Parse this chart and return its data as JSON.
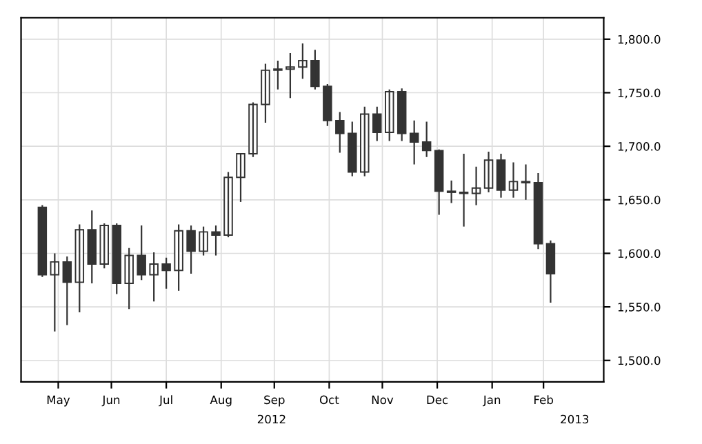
{
  "chart_data": {
    "type": "candlestick",
    "x": [
      "2012-05-07",
      "2012-05-14",
      "2012-05-21",
      "2012-05-28",
      "2012-06-04",
      "2012-06-11",
      "2012-06-18",
      "2012-06-25",
      "2012-07-02",
      "2012-07-09",
      "2012-07-16",
      "2012-07-23",
      "2012-07-30",
      "2012-08-06",
      "2012-08-13",
      "2012-08-20",
      "2012-08-27",
      "2012-09-03",
      "2012-09-10",
      "2012-09-17",
      "2012-09-24",
      "2012-10-01",
      "2012-10-08",
      "2012-10-15",
      "2012-10-22",
      "2012-10-29",
      "2012-11-05",
      "2012-11-12",
      "2012-11-19",
      "2012-11-26",
      "2012-12-03",
      "2012-12-10",
      "2012-12-17",
      "2012-12-24",
      "2012-12-31",
      "2013-01-07",
      "2013-01-14",
      "2013-01-21",
      "2013-01-28",
      "2013-02-04",
      "2013-02-11",
      "2013-02-18"
    ],
    "ohlc": [
      [
        1643,
        1645,
        1578,
        1580
      ],
      [
        1580,
        1600,
        1527,
        1592
      ],
      [
        1592,
        1597,
        1533,
        1573
      ],
      [
        1573,
        1627,
        1545,
        1622
      ],
      [
        1622,
        1640,
        1572,
        1590
      ],
      [
        1590,
        1628,
        1586,
        1626
      ],
      [
        1626,
        1628,
        1562,
        1572
      ],
      [
        1572,
        1605,
        1548,
        1598
      ],
      [
        1598,
        1626,
        1575,
        1580
      ],
      [
        1580,
        1601,
        1555,
        1590
      ],
      [
        1590,
        1596,
        1567,
        1584
      ],
      [
        1584,
        1627,
        1565,
        1621
      ],
      [
        1621,
        1626,
        1581,
        1602
      ],
      [
        1602,
        1625,
        1598,
        1620
      ],
      [
        1620,
        1626,
        1598,
        1617
      ],
      [
        1617,
        1676,
        1615,
        1671
      ],
      [
        1671,
        1693,
        1648,
        1693
      ],
      [
        1693,
        1741,
        1690,
        1739
      ],
      [
        1739,
        1777,
        1722,
        1771
      ],
      [
        1771,
        1780,
        1753,
        1772
      ],
      [
        1772,
        1787,
        1745,
        1774
      ],
      [
        1774,
        1796,
        1763,
        1780
      ],
      [
        1780,
        1790,
        1753,
        1756
      ],
      [
        1756,
        1758,
        1719,
        1724
      ],
      [
        1724,
        1732,
        1694,
        1712
      ],
      [
        1712,
        1723,
        1672,
        1676
      ],
      [
        1676,
        1737,
        1672,
        1730
      ],
      [
        1730,
        1737,
        1705,
        1713
      ],
      [
        1713,
        1753,
        1705,
        1751
      ],
      [
        1751,
        1754,
        1705,
        1712
      ],
      [
        1712,
        1724,
        1683,
        1704
      ],
      [
        1704,
        1723,
        1690,
        1696
      ],
      [
        1696,
        1697,
        1636,
        1658
      ],
      [
        1658,
        1668,
        1647,
        1657
      ],
      [
        1657,
        1693,
        1625,
        1656
      ],
      [
        1656,
        1681,
        1645,
        1661
      ],
      [
        1661,
        1695,
        1657,
        1687
      ],
      [
        1687,
        1693,
        1652,
        1659
      ],
      [
        1659,
        1685,
        1652,
        1667
      ],
      [
        1667,
        1683,
        1650,
        1666
      ],
      [
        1666,
        1675,
        1604,
        1609
      ],
      [
        1609,
        1612,
        1554,
        1581
      ]
    ],
    "xlim": [
      "2012-04-25",
      "2013-03-20"
    ],
    "xticks": [
      {
        "value": "2012-05-16",
        "label": "May"
      },
      {
        "value": "2012-06-15",
        "label": "Jun"
      },
      {
        "value": "2012-07-16",
        "label": "Jul"
      },
      {
        "value": "2012-08-16",
        "label": "Aug"
      },
      {
        "value": "2012-09-15",
        "label": "Sep"
      },
      {
        "value": "2012-10-16",
        "label": "Oct"
      },
      {
        "value": "2012-11-15",
        "label": "Nov"
      },
      {
        "value": "2012-12-16",
        "label": "Dec"
      },
      {
        "value": "2013-01-16",
        "label": "Jan"
      },
      {
        "value": "2013-02-14",
        "label": "Feb"
      }
    ],
    "ylim": [
      1480,
      1820
    ],
    "yticks": [
      {
        "value": 1500,
        "label": "1,500.0"
      },
      {
        "value": 1550,
        "label": "1,550.0"
      },
      {
        "value": 1600,
        "label": "1,600.0"
      },
      {
        "value": 1650,
        "label": "1,650.0"
      },
      {
        "value": 1700,
        "label": "1,700.0"
      },
      {
        "value": 1750,
        "label": "1,750.0"
      },
      {
        "value": 1800,
        "label": "1,800.0"
      }
    ],
    "annotations": [
      "2012",
      "2013"
    ],
    "grid": true
  }
}
